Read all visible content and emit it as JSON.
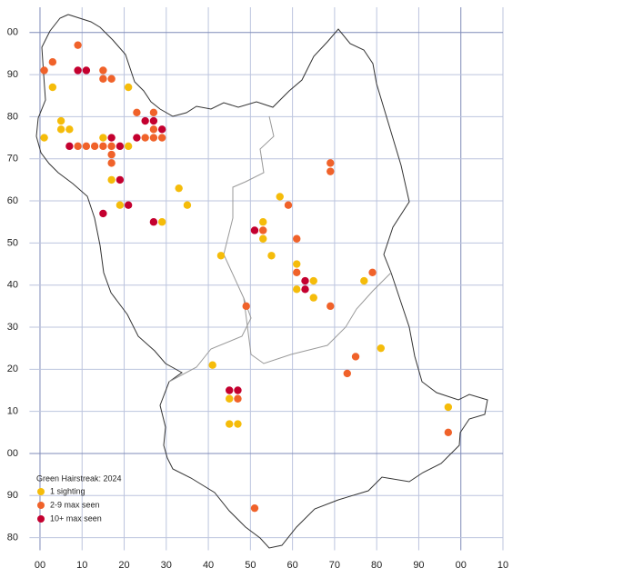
{
  "chart_data": {
    "type": "scatter",
    "title": "Green Hairstreak:  2024",
    "xlim": [
      -2.5,
      110
    ],
    "ylim": [
      -23,
      106
    ],
    "grid": true,
    "xticks": [
      {
        "value": 0,
        "label": "00"
      },
      10,
      20,
      30,
      40,
      50,
      60,
      70,
      80,
      90,
      {
        "value": 100,
        "label": "00"
      },
      {
        "value": 110,
        "label": "10"
      }
    ],
    "yticks": [
      {
        "value": 100,
        "label": "00"
      },
      90,
      80,
      70,
      60,
      50,
      40,
      30,
      20,
      10,
      {
        "value": 0,
        "label": "00"
      },
      {
        "value": -10,
        "label": "90"
      },
      {
        "value": -20,
        "label": "80"
      }
    ],
    "series": [
      {
        "name": "1 sighting",
        "color": "#f5bc0a",
        "x": [
          1,
          3,
          5,
          5,
          7,
          15,
          17,
          19,
          21,
          21,
          33,
          35,
          29,
          43,
          41,
          45,
          45,
          47,
          53,
          53,
          55,
          57,
          61,
          61,
          65,
          65,
          77,
          81,
          97
        ],
        "y": [
          75,
          87,
          79,
          77,
          77,
          75,
          65,
          59,
          73,
          87,
          63,
          59,
          55,
          47,
          21,
          13,
          7,
          7,
          55,
          51,
          47,
          61,
          45,
          39,
          41,
          37,
          41,
          25,
          11
        ]
      },
      {
        "name": "2-9 max seen",
        "color": "#f0622a",
        "x": [
          1,
          3,
          9,
          15,
          15,
          17,
          9,
          11,
          13,
          15,
          17,
          17,
          17,
          23,
          27,
          27,
          25,
          27,
          29,
          59,
          53,
          61,
          61,
          49,
          69,
          69,
          69,
          79,
          75,
          73,
          47,
          51,
          97
        ],
        "y": [
          91,
          93,
          97,
          91,
          89,
          89,
          73,
          73,
          73,
          73,
          73,
          71,
          69,
          81,
          81,
          77,
          75,
          75,
          75,
          59,
          53,
          51,
          43,
          35,
          69,
          67,
          35,
          43,
          23,
          19,
          13,
          -13,
          5
        ]
      },
      {
        "name": "10+ max seen",
        "color": "#c4002f",
        "x": [
          9,
          11,
          25,
          27,
          29,
          23,
          17,
          7,
          19,
          19,
          21,
          15,
          27,
          51,
          63,
          63,
          45,
          47
        ],
        "y": [
          91,
          91,
          79,
          79,
          77,
          75,
          75,
          73,
          73,
          65,
          59,
          57,
          55,
          53,
          41,
          39,
          15,
          15
        ]
      }
    ]
  }
}
